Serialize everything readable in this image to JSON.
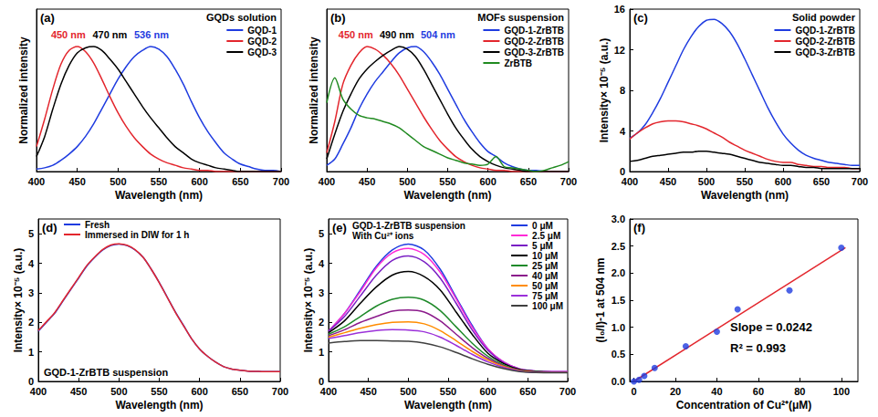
{
  "chart_data": [
    {
      "type": "line",
      "title": "(a)",
      "subtitle": "GQDs solution",
      "x_label": "Wavelength (nm)",
      "y_label": "Normalized intensity",
      "xlim": [
        400,
        700
      ],
      "xticks": [
        400,
        450,
        500,
        550,
        600,
        650,
        700
      ],
      "ylim": [
        0,
        1.3
      ],
      "tick_labels": "x",
      "grid": false,
      "legend": "upper right",
      "annotations": [
        {
          "text": "450 nm",
          "color": "#e3262d"
        },
        {
          "text": "470 nm",
          "color": "#000000"
        },
        {
          "text": "536 nm",
          "color": "#1f3ce0"
        }
      ],
      "x": [
        400,
        410,
        420,
        430,
        440,
        450,
        460,
        470,
        480,
        490,
        500,
        510,
        520,
        530,
        540,
        550,
        560,
        570,
        580,
        590,
        600,
        610,
        620,
        630,
        640,
        650,
        660,
        670,
        680,
        690,
        700
      ],
      "series": [
        {
          "name": "GQD-1",
          "color": "#1f3ce0",
          "values": [
            0.02,
            0.03,
            0.05,
            0.09,
            0.14,
            0.2,
            0.28,
            0.38,
            0.5,
            0.62,
            0.74,
            0.84,
            0.92,
            0.97,
            1.0,
            0.98,
            0.92,
            0.82,
            0.7,
            0.56,
            0.43,
            0.32,
            0.23,
            0.15,
            0.1,
            0.06,
            0.04,
            0.02,
            0.01,
            0.01,
            0.0
          ]
        },
        {
          "name": "GQD-2",
          "color": "#e3262d",
          "values": [
            0.2,
            0.42,
            0.66,
            0.86,
            0.97,
            1.0,
            0.96,
            0.87,
            0.74,
            0.6,
            0.47,
            0.36,
            0.27,
            0.2,
            0.14,
            0.1,
            0.07,
            0.05,
            0.03,
            0.02,
            0.01,
            0.01,
            0.0,
            0.0,
            0.0,
            0.0,
            0.0,
            0.0,
            0.0,
            0.0,
            0.0
          ]
        },
        {
          "name": "GQD-3",
          "color": "#000000",
          "values": [
            0.12,
            0.28,
            0.5,
            0.7,
            0.85,
            0.95,
            0.99,
            1.0,
            0.97,
            0.9,
            0.82,
            0.72,
            0.62,
            0.52,
            0.43,
            0.35,
            0.27,
            0.2,
            0.15,
            0.1,
            0.07,
            0.05,
            0.03,
            0.02,
            0.01,
            0.0,
            0.0,
            0.0,
            0.0,
            0.0,
            0.0
          ]
        }
      ]
    },
    {
      "type": "line",
      "title": "(b)",
      "subtitle": "MOFs suspension",
      "x_label": "Wavelength (nm)",
      "y_label": "Normalized intensity",
      "xlim": [
        400,
        700
      ],
      "xticks": [
        400,
        450,
        500,
        550,
        600,
        650,
        700
      ],
      "ylim": [
        0,
        1.3
      ],
      "tick_labels": "x",
      "grid": false,
      "legend": "upper right",
      "annotations": [
        {
          "text": "450 nm",
          "color": "#e3262d"
        },
        {
          "text": "490 nm",
          "color": "#000000"
        },
        {
          "text": "504 nm",
          "color": "#1f3ce0"
        }
      ],
      "x": [
        400,
        410,
        420,
        430,
        440,
        450,
        460,
        470,
        480,
        490,
        500,
        510,
        520,
        530,
        540,
        550,
        560,
        570,
        580,
        590,
        600,
        610,
        620,
        630,
        640,
        650,
        660,
        670,
        680,
        690,
        700
      ],
      "series": [
        {
          "name": "GQD-1-ZrBTB",
          "color": "#1f3ce0",
          "values": [
            0.05,
            0.1,
            0.22,
            0.35,
            0.5,
            0.62,
            0.72,
            0.8,
            0.88,
            0.95,
            0.99,
            1.0,
            0.96,
            0.88,
            0.78,
            0.66,
            0.54,
            0.42,
            0.32,
            0.23,
            0.16,
            0.12,
            0.07,
            0.04,
            0.02,
            0.01,
            0.01,
            0.0,
            0.0,
            0.0,
            0.0
          ]
        },
        {
          "name": "GQD-2-ZrBTB",
          "color": "#e3262d",
          "values": [
            0.15,
            0.4,
            0.7,
            0.85,
            0.95,
            1.0,
            0.98,
            0.93,
            0.86,
            0.77,
            0.66,
            0.55,
            0.44,
            0.34,
            0.25,
            0.18,
            0.12,
            0.08,
            0.05,
            0.03,
            0.02,
            0.01,
            0.01,
            0.0,
            0.0,
            0.0,
            0.0,
            0.0,
            0.0,
            0.0,
            0.0
          ]
        },
        {
          "name": "GQD-3-ZrBTB",
          "color": "#000000",
          "values": [
            0.1,
            0.3,
            0.48,
            0.62,
            0.74,
            0.82,
            0.88,
            0.93,
            0.97,
            1.0,
            0.98,
            0.92,
            0.82,
            0.7,
            0.58,
            0.46,
            0.35,
            0.26,
            0.18,
            0.12,
            0.08,
            0.05,
            0.03,
            0.02,
            0.01,
            0.0,
            0.0,
            0.0,
            0.0,
            0.0,
            0.0
          ]
        },
        {
          "name": "ZrBTB",
          "color": "#208a20",
          "values": [
            0.55,
            0.75,
            0.58,
            0.5,
            0.45,
            0.43,
            0.42,
            0.4,
            0.38,
            0.35,
            0.3,
            0.25,
            0.2,
            0.17,
            0.14,
            0.11,
            0.09,
            0.07,
            0.06,
            0.05,
            0.06,
            0.12,
            0.04,
            0.03,
            0.02,
            0.01,
            0.0,
            0.01,
            0.03,
            0.05,
            0.08
          ]
        }
      ]
    },
    {
      "type": "line",
      "title": "(c)",
      "subtitle": "Solid powder",
      "x_label": "Wavelength (nm)",
      "y_label": "Intensity× 10⁻⁵ (a.u.)",
      "xlim": [
        400,
        700
      ],
      "xticks": [
        400,
        450,
        500,
        550,
        600,
        650,
        700
      ],
      "ylim": [
        0,
        16
      ],
      "yticks": [
        0,
        4,
        8,
        12,
        16
      ],
      "grid": false,
      "legend": "upper right",
      "x": [
        400,
        410,
        420,
        430,
        440,
        450,
        460,
        470,
        480,
        490,
        500,
        510,
        520,
        530,
        540,
        550,
        560,
        570,
        580,
        590,
        600,
        610,
        620,
        630,
        640,
        650,
        660,
        670,
        680,
        690,
        700
      ],
      "series": [
        {
          "name": "GQD-1-ZrBTB",
          "color": "#1f3ce0",
          "values": [
            3.3,
            3.8,
            4.6,
            5.8,
            7.2,
            8.8,
            10.4,
            12.0,
            13.3,
            14.3,
            14.9,
            15.0,
            14.6,
            13.8,
            12.6,
            11.1,
            9.5,
            7.9,
            6.3,
            4.9,
            3.7,
            2.8,
            2.1,
            1.6,
            1.3,
            1.1,
            0.9,
            0.8,
            0.7,
            0.6,
            0.6
          ]
        },
        {
          "name": "GQD-2-ZrBTB",
          "color": "#e3262d",
          "values": [
            3.2,
            3.8,
            4.3,
            4.7,
            4.9,
            5.0,
            5.0,
            4.9,
            4.7,
            4.5,
            4.2,
            3.8,
            3.4,
            2.9,
            2.5,
            2.1,
            1.8,
            1.5,
            1.2,
            1.0,
            0.9,
            0.9,
            0.7,
            0.6,
            0.5,
            0.5,
            0.4,
            0.4,
            0.4,
            0.3,
            0.3
          ]
        },
        {
          "name": "GQD-3-ZrBTB",
          "color": "#000000",
          "values": [
            1.0,
            1.1,
            1.3,
            1.5,
            1.6,
            1.7,
            1.8,
            1.9,
            1.9,
            2.0,
            2.0,
            1.9,
            1.8,
            1.7,
            1.5,
            1.3,
            1.1,
            0.9,
            0.8,
            0.7,
            0.6,
            0.6,
            0.5,
            0.4,
            0.4,
            0.3,
            0.3,
            0.3,
            0.3,
            0.3,
            0.3
          ]
        }
      ]
    },
    {
      "type": "line",
      "title": "(d)",
      "subtitle": "GQD-1-ZrBTB suspension",
      "x_label": "Wavelength (nm)",
      "y_label": "Intensity× 10⁻⁵ (a.u.)",
      "xlim": [
        400,
        700
      ],
      "xticks": [
        400,
        450,
        500,
        550,
        600,
        650,
        700
      ],
      "ylim": [
        0,
        5.5
      ],
      "yticks": [
        0,
        1,
        2,
        3,
        4,
        5
      ],
      "grid": false,
      "legend": "upper left",
      "x": [
        400,
        410,
        420,
        430,
        440,
        450,
        460,
        470,
        480,
        490,
        500,
        510,
        520,
        530,
        540,
        550,
        560,
        570,
        580,
        590,
        600,
        610,
        620,
        630,
        640,
        650,
        660,
        670,
        680,
        690,
        700
      ],
      "series": [
        {
          "name": "Fresh",
          "color": "#1f3ce0",
          "values": [
            1.7,
            2.0,
            2.3,
            2.7,
            3.1,
            3.5,
            3.9,
            4.2,
            4.45,
            4.6,
            4.65,
            4.6,
            4.45,
            4.2,
            3.8,
            3.35,
            2.85,
            2.35,
            1.9,
            1.45,
            1.1,
            0.85,
            0.65,
            0.5,
            0.42,
            0.38,
            0.35,
            0.34,
            0.33,
            0.33,
            0.33
          ]
        },
        {
          "name": "Immersed in DIW for 1 h",
          "color": "#e3262d",
          "values": [
            1.72,
            2.02,
            2.32,
            2.72,
            3.12,
            3.52,
            3.92,
            4.22,
            4.47,
            4.62,
            4.66,
            4.61,
            4.46,
            4.2,
            3.8,
            3.34,
            2.84,
            2.34,
            1.89,
            1.45,
            1.1,
            0.85,
            0.65,
            0.5,
            0.42,
            0.38,
            0.35,
            0.34,
            0.33,
            0.33,
            0.33
          ]
        }
      ]
    },
    {
      "type": "line",
      "title": "(e)",
      "subtitle": "GQD-1-ZrBTB suspension",
      "x_label": "Wavelength (nm)",
      "y_label": "Intensity× 10⁻⁵ (a.u.)",
      "xlim": [
        400,
        700
      ],
      "xticks": [
        400,
        450,
        500,
        550,
        600,
        650,
        700
      ],
      "ylim": [
        0,
        5.5
      ],
      "yticks": [
        0,
        1,
        2,
        3,
        4,
        5
      ],
      "grid": false,
      "legend": "upper right",
      "annotations": [
        {
          "text": "With Cu²⁺ ions",
          "color": "#000000"
        }
      ],
      "x": [
        400,
        420,
        440,
        460,
        480,
        500,
        520,
        540,
        560,
        580,
        600,
        620,
        640,
        660,
        680,
        700
      ],
      "series": [
        {
          "name": "0 μM",
          "color": "#1f3ce0",
          "values": [
            1.7,
            2.3,
            3.1,
            3.9,
            4.45,
            4.65,
            4.45,
            3.8,
            2.85,
            1.9,
            1.1,
            0.65,
            0.42,
            0.35,
            0.33,
            0.33
          ]
        },
        {
          "name": "2.5 μM",
          "color": "#ff2bd6",
          "values": [
            1.7,
            2.3,
            3.05,
            3.85,
            4.35,
            4.5,
            4.3,
            3.7,
            2.8,
            1.85,
            1.1,
            0.65,
            0.42,
            0.35,
            0.33,
            0.33
          ]
        },
        {
          "name": "5 μM",
          "color": "#7a1fc4",
          "values": [
            1.7,
            2.2,
            2.9,
            3.6,
            4.1,
            4.25,
            4.05,
            3.5,
            2.65,
            1.75,
            1.05,
            0.62,
            0.4,
            0.34,
            0.32,
            0.32
          ]
        },
        {
          "name": "10 μM",
          "color": "#000000",
          "values": [
            1.65,
            2.05,
            2.65,
            3.2,
            3.6,
            3.72,
            3.55,
            3.1,
            2.35,
            1.6,
            0.95,
            0.6,
            0.4,
            0.34,
            0.32,
            0.32
          ]
        },
        {
          "name": "25 μM",
          "color": "#1f8a2a",
          "values": [
            1.6,
            1.85,
            2.2,
            2.55,
            2.78,
            2.85,
            2.75,
            2.4,
            1.85,
            1.3,
            0.85,
            0.55,
            0.38,
            0.33,
            0.31,
            0.31
          ]
        },
        {
          "name": "40 μM",
          "color": "#8b1a8b",
          "values": [
            1.55,
            1.75,
            2.0,
            2.2,
            2.38,
            2.42,
            2.35,
            2.05,
            1.6,
            1.15,
            0.78,
            0.52,
            0.37,
            0.32,
            0.3,
            0.3
          ]
        },
        {
          "name": "50 μM",
          "color": "#ff8c00",
          "values": [
            1.5,
            1.65,
            1.8,
            1.92,
            2.0,
            2.02,
            1.95,
            1.72,
            1.38,
            1.02,
            0.72,
            0.5,
            0.36,
            0.32,
            0.3,
            0.3
          ]
        },
        {
          "name": "75 μM",
          "color": "#9b30d9",
          "values": [
            1.45,
            1.55,
            1.65,
            1.72,
            1.75,
            1.74,
            1.68,
            1.5,
            1.22,
            0.92,
            0.66,
            0.47,
            0.35,
            0.31,
            0.3,
            0.3
          ]
        },
        {
          "name": "100 μM",
          "color": "#404040",
          "values": [
            1.3,
            1.35,
            1.38,
            1.38,
            1.37,
            1.36,
            1.3,
            1.17,
            0.98,
            0.77,
            0.58,
            0.43,
            0.33,
            0.3,
            0.29,
            0.29
          ]
        }
      ]
    },
    {
      "type": "scatter",
      "title": "(f)",
      "x_label": "Concentration of Cu²⁺(μM)",
      "y_label": "(I₀/I)-1 at 504 nm",
      "xlim": [
        -2,
        108
      ],
      "xticks": [
        0,
        20,
        40,
        60,
        80,
        100
      ],
      "ylim": [
        0,
        3
      ],
      "yticks": [
        {
          "value": 0,
          "label": "0.0"
        },
        {
          "value": 0.5,
          "label": "0.5"
        },
        {
          "value": 1,
          "label": "1.0"
        },
        {
          "value": 1.5,
          "label": "1.5"
        },
        {
          "value": 2,
          "label": "2.0"
        },
        {
          "value": 2.5,
          "label": "2.5"
        },
        {
          "value": 3,
          "label": "3.0"
        }
      ],
      "grid": false,
      "annotations": [
        {
          "text": "Slope = 0.0242",
          "color": "#000000"
        },
        {
          "text": "R² = 0.993",
          "color": "#000000"
        }
      ],
      "x": [
        0,
        2.5,
        5,
        10,
        25,
        40,
        50,
        75,
        100
      ],
      "series": [
        {
          "type": "line",
          "color": "#e3262d",
          "x": [
            0,
            102
          ],
          "values": [
            0.0,
            2.47
          ]
        },
        {
          "type": "scatter",
          "marker": "circle",
          "color": "#1f3ce0",
          "values": [
            0.0,
            0.03,
            0.1,
            0.25,
            0.65,
            0.92,
            1.33,
            1.68,
            2.47
          ]
        }
      ]
    }
  ]
}
